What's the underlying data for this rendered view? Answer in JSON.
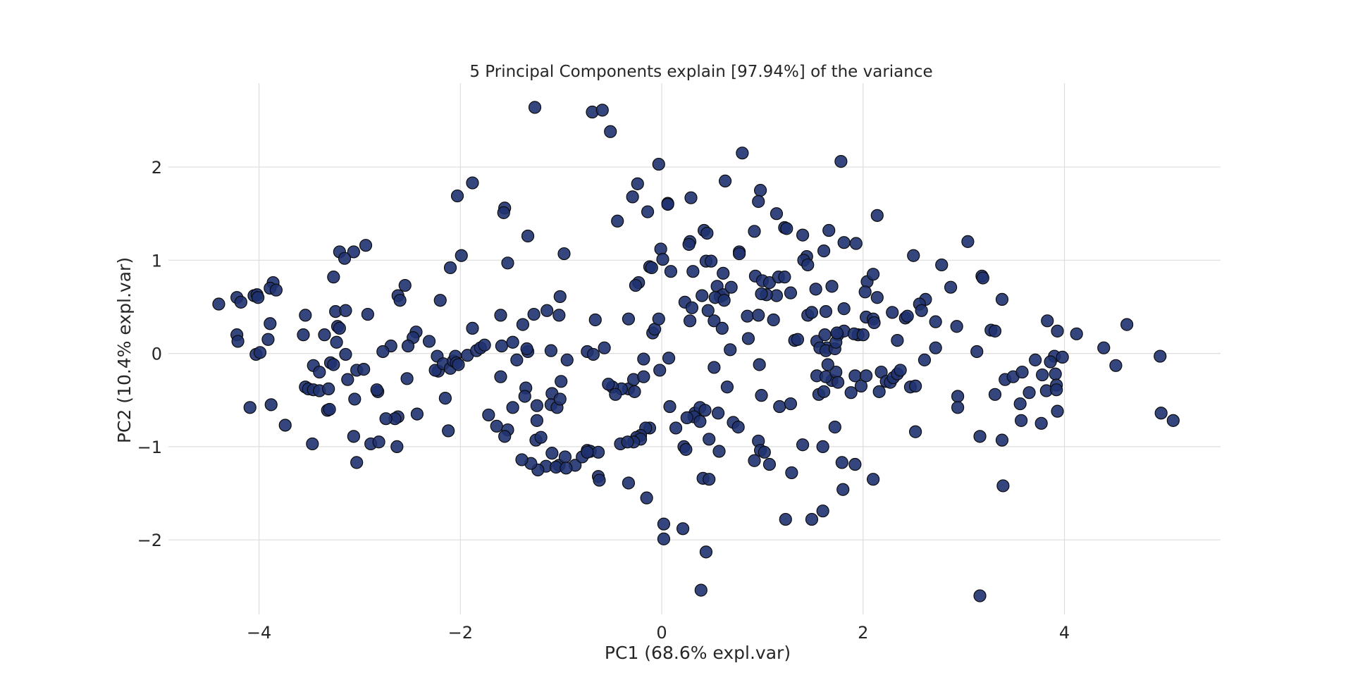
{
  "chart_data": {
    "type": "scatter",
    "title": "5 Principal Components explain [97.94%] of the variance",
    "xlabel": "PC1 (68.6% expl.var)",
    "ylabel": "PC2 (10.4% expl.var)",
    "xlim": [
      -4.9,
      5.55
    ],
    "ylim": [
      -2.8,
      2.9
    ],
    "xticks": [
      -4,
      -2,
      0,
      2,
      4
    ],
    "xtick_labels": [
      "−4",
      "−2",
      "0",
      "2",
      "4"
    ],
    "yticks": [
      -2,
      -1,
      0,
      1,
      2
    ],
    "ytick_labels": [
      "−2",
      "−1",
      "0",
      "1",
      "2"
    ],
    "grid": true,
    "legend": "none",
    "point_color": "#1f3270",
    "edge_color": "#0c0c0c",
    "points": [
      [
        -1.26,
        2.64
      ],
      [
        -0.69,
        2.59
      ],
      [
        -0.59,
        2.61
      ],
      [
        -0.51,
        2.38
      ],
      [
        -0.03,
        2.03
      ],
      [
        0.8,
        2.15
      ],
      [
        1.78,
        2.06
      ],
      [
        -1.88,
        1.83
      ],
      [
        -2.03,
        1.69
      ],
      [
        -1.56,
        1.56
      ],
      [
        -1.57,
        1.51
      ],
      [
        -0.24,
        1.82
      ],
      [
        -0.29,
        1.68
      ],
      [
        0.06,
        1.61
      ],
      [
        0.06,
        1.6
      ],
      [
        0.29,
        1.67
      ],
      [
        0.63,
        1.85
      ],
      [
        0.98,
        1.75
      ],
      [
        0.96,
        1.63
      ],
      [
        1.14,
        1.5
      ],
      [
        1.22,
        1.35
      ],
      [
        1.24,
        1.34
      ],
      [
        2.14,
        1.48
      ],
      [
        -0.14,
        1.52
      ],
      [
        -0.44,
        1.42
      ],
      [
        -1.33,
        1.26
      ],
      [
        -1.53,
        0.97
      ],
      [
        -0.97,
        1.07
      ],
      [
        -1.99,
        1.05
      ],
      [
        -2.1,
        0.92
      ],
      [
        -3.2,
        1.09
      ],
      [
        -3.06,
        1.09
      ],
      [
        -2.94,
        1.16
      ],
      [
        -3.15,
        1.02
      ],
      [
        0.42,
        1.32
      ],
      [
        0.45,
        1.29
      ],
      [
        0.28,
        1.2
      ],
      [
        0.27,
        1.17
      ],
      [
        0.77,
        1.09
      ],
      [
        0.77,
        1.07
      ],
      [
        0.92,
        1.31
      ],
      [
        1.4,
        1.27
      ],
      [
        1.66,
        1.32
      ],
      [
        1.61,
        1.1
      ],
      [
        1.81,
        1.19
      ],
      [
        1.93,
        1.18
      ],
      [
        1.44,
        1.04
      ],
      [
        1.41,
        1.0
      ],
      [
        1.45,
        0.95
      ],
      [
        -0.01,
        1.12
      ],
      [
        0.01,
        1.01
      ],
      [
        -0.12,
        0.93
      ],
      [
        -0.1,
        0.92
      ],
      [
        0.09,
        0.88
      ],
      [
        -0.23,
        0.76
      ],
      [
        -0.26,
        0.73
      ],
      [
        0.31,
        0.88
      ],
      [
        0.44,
        0.99
      ],
      [
        0.49,
        0.99
      ],
      [
        0.55,
        0.72
      ],
      [
        0.58,
        0.61
      ],
      [
        0.61,
        0.63
      ],
      [
        0.69,
        0.71
      ],
      [
        0.61,
        0.86
      ],
      [
        0.93,
        0.83
      ],
      [
        1.0,
        0.78
      ],
      [
        1.07,
        0.76
      ],
      [
        1.16,
        0.82
      ],
      [
        1.22,
        0.82
      ],
      [
        1.28,
        0.65
      ],
      [
        1.14,
        0.62
      ],
      [
        1.04,
        0.63
      ],
      [
        1.53,
        0.69
      ],
      [
        1.69,
        0.72
      ],
      [
        2.04,
        0.77
      ],
      [
        2.1,
        0.85
      ],
      [
        2.14,
        0.6
      ],
      [
        2.02,
        0.66
      ],
      [
        2.5,
        1.05
      ],
      [
        2.78,
        0.95
      ],
      [
        3.04,
        1.2
      ],
      [
        2.87,
        0.71
      ],
      [
        2.62,
        0.58
      ],
      [
        2.56,
        0.53
      ],
      [
        2.58,
        0.46
      ],
      [
        3.18,
        0.83
      ],
      [
        3.19,
        0.81
      ],
      [
        3.38,
        0.58
      ],
      [
        -4.4,
        0.53
      ],
      [
        -4.22,
        0.6
      ],
      [
        -4.18,
        0.55
      ],
      [
        -4.05,
        0.62
      ],
      [
        -4.02,
        0.63
      ],
      [
        -4.01,
        0.6
      ],
      [
        -3.86,
        0.76
      ],
      [
        -3.89,
        0.7
      ],
      [
        -3.83,
        0.68
      ],
      [
        -3.26,
        0.82
      ],
      [
        -3.24,
        0.45
      ],
      [
        -3.14,
        0.46
      ],
      [
        -2.92,
        0.42
      ],
      [
        -2.62,
        0.62
      ],
      [
        -2.6,
        0.57
      ],
      [
        -2.55,
        0.73
      ],
      [
        -2.2,
        0.57
      ],
      [
        -3.89,
        0.32
      ],
      [
        -3.22,
        0.29
      ],
      [
        -3.2,
        0.27
      ],
      [
        -3.91,
        0.15
      ],
      [
        -3.54,
        0.41
      ],
      [
        -3.56,
        0.2
      ],
      [
        -3.35,
        0.2
      ],
      [
        -3.23,
        0.12
      ],
      [
        -4.22,
        0.2
      ],
      [
        -4.21,
        0.13
      ],
      [
        -4.03,
        -0.01
      ],
      [
        -3.99,
        0.01
      ],
      [
        -3.14,
        -0.01
      ],
      [
        -2.69,
        0.08
      ],
      [
        -2.77,
        0.02
      ],
      [
        -2.44,
        0.23
      ],
      [
        -2.47,
        0.17
      ],
      [
        -2.52,
        0.08
      ],
      [
        -2.31,
        0.13
      ],
      [
        -2.23,
        -0.03
      ],
      [
        -2.22,
        -0.19
      ],
      [
        -2.25,
        -0.18
      ],
      [
        -2.17,
        -0.11
      ],
      [
        -2.1,
        -0.16
      ],
      [
        -2.07,
        -0.08
      ],
      [
        -2.05,
        -0.03
      ],
      [
        -2.04,
        -0.1
      ],
      [
        -2.02,
        -0.12
      ],
      [
        -1.93,
        -0.02
      ],
      [
        -1.88,
        0.27
      ],
      [
        -1.84,
        0.03
      ],
      [
        -1.8,
        0.06
      ],
      [
        -1.76,
        0.09
      ],
      [
        -1.59,
        0.08
      ],
      [
        -1.6,
        0.41
      ],
      [
        -1.48,
        0.12
      ],
      [
        -1.44,
        -0.07
      ],
      [
        -1.38,
        0.31
      ],
      [
        -1.33,
        0.02
      ],
      [
        -1.34,
        0.05
      ],
      [
        -1.1,
        0.03
      ],
      [
        -1.27,
        0.42
      ],
      [
        -1.14,
        0.46
      ],
      [
        -1.02,
        0.41
      ],
      [
        -1.01,
        0.61
      ],
      [
        -0.94,
        -0.07
      ],
      [
        -0.74,
        0.02
      ],
      [
        -0.66,
        0.36
      ],
      [
        -0.57,
        0.06
      ],
      [
        -0.68,
        -0.01
      ],
      [
        -0.33,
        0.37
      ],
      [
        -0.18,
        -0.06
      ],
      [
        0.07,
        -0.05
      ],
      [
        -0.09,
        0.22
      ],
      [
        -0.07,
        0.26
      ],
      [
        -0.03,
        0.37
      ],
      [
        0.23,
        0.55
      ],
      [
        0.28,
        0.35
      ],
      [
        0.3,
        0.49
      ],
      [
        0.4,
        0.62
      ],
      [
        0.46,
        0.46
      ],
      [
        0.53,
        0.6
      ],
      [
        0.52,
        0.35
      ],
      [
        0.6,
        0.27
      ],
      [
        0.62,
        0.57
      ],
      [
        0.68,
        0.04
      ],
      [
        0.85,
        0.4
      ],
      [
        0.86,
        0.16
      ],
      [
        0.96,
        0.41
      ],
      [
        0.99,
        0.64
      ],
      [
        1.11,
        0.36
      ],
      [
        1.32,
        0.14
      ],
      [
        1.35,
        0.15
      ],
      [
        1.45,
        0.41
      ],
      [
        1.49,
        0.44
      ],
      [
        1.63,
        0.45
      ],
      [
        1.54,
        0.13
      ],
      [
        1.62,
        0.2
      ],
      [
        1.75,
        0.2
      ],
      [
        1.64,
        0.06
      ],
      [
        1.57,
        0.06
      ],
      [
        1.63,
        0.03
      ],
      [
        1.72,
        0.05
      ],
      [
        1.73,
        0.12
      ],
      [
        1.81,
        0.24
      ],
      [
        1.95,
        0.2
      ],
      [
        1.91,
        0.21
      ],
      [
        2.03,
        0.39
      ],
      [
        2.1,
        0.37
      ],
      [
        2.0,
        0.2
      ],
      [
        2.11,
        0.33
      ],
      [
        2.29,
        0.44
      ],
      [
        2.42,
        0.38
      ],
      [
        2.44,
        0.4
      ],
      [
        2.72,
        0.34
      ],
      [
        2.61,
        -0.07
      ],
      [
        2.72,
        0.06
      ],
      [
        2.34,
        0.14
      ],
      [
        1.74,
        0.22
      ],
      [
        1.81,
        0.48
      ],
      [
        2.93,
        0.29
      ],
      [
        3.13,
        0.02
      ],
      [
        3.27,
        0.25
      ],
      [
        3.31,
        0.24
      ],
      [
        3.83,
        0.35
      ],
      [
        3.93,
        0.24
      ],
      [
        4.12,
        0.21
      ],
      [
        4.39,
        0.06
      ],
      [
        4.51,
        -0.13
      ],
      [
        4.62,
        0.31
      ],
      [
        4.95,
        -0.03
      ],
      [
        3.9,
        -0.03
      ],
      [
        3.98,
        -0.04
      ],
      [
        3.86,
        -0.09
      ],
      [
        3.71,
        -0.07
      ],
      [
        -3.46,
        -0.13
      ],
      [
        -3.4,
        -0.2
      ],
      [
        -3.29,
        -0.1
      ],
      [
        -3.26,
        -0.12
      ],
      [
        -3.12,
        -0.28
      ],
      [
        -3.03,
        -0.18
      ],
      [
        -2.96,
        -0.17
      ],
      [
        -3.54,
        -0.36
      ],
      [
        -3.51,
        -0.38
      ],
      [
        -3.46,
        -0.39
      ],
      [
        -3.4,
        -0.4
      ],
      [
        -3.31,
        -0.38
      ],
      [
        -2.82,
        -0.41
      ],
      [
        -2.83,
        -0.39
      ],
      [
        -2.43,
        -0.65
      ],
      [
        -2.53,
        -0.27
      ],
      [
        -3.05,
        -0.49
      ],
      [
        -3.32,
        -0.61
      ],
      [
        -3.3,
        -0.6
      ],
      [
        -4.09,
        -0.58
      ],
      [
        -3.88,
        -0.55
      ],
      [
        -2.62,
        -0.68
      ],
      [
        -2.65,
        -0.7
      ],
      [
        -2.74,
        -0.7
      ],
      [
        -3.74,
        -0.77
      ],
      [
        -3.47,
        -0.97
      ],
      [
        -3.06,
        -0.89
      ],
      [
        -2.89,
        -0.97
      ],
      [
        -2.81,
        -0.95
      ],
      [
        -2.63,
        -1.0
      ],
      [
        -3.03,
        -1.17
      ],
      [
        -2.15,
        -0.48
      ],
      [
        -2.12,
        -0.83
      ],
      [
        -1.72,
        -0.66
      ],
      [
        -1.64,
        -0.78
      ],
      [
        -1.6,
        -0.25
      ],
      [
        -1.53,
        -0.82
      ],
      [
        -1.56,
        -0.89
      ],
      [
        -1.48,
        -0.58
      ],
      [
        -1.35,
        -0.37
      ],
      [
        -1.36,
        -0.46
      ],
      [
        -1.24,
        -0.56
      ],
      [
        -1.24,
        -0.72
      ],
      [
        -1.25,
        -0.93
      ],
      [
        -1.2,
        -0.9
      ],
      [
        -1.09,
        -0.43
      ],
      [
        -1.1,
        -0.55
      ],
      [
        -1.04,
        -0.58
      ],
      [
        -1.01,
        -0.49
      ],
      [
        -1.0,
        -0.3
      ],
      [
        -1.09,
        -1.07
      ],
      [
        -1.02,
        -1.2
      ],
      [
        -0.96,
        -1.11
      ],
      [
        -0.86,
        -1.2
      ],
      [
        -0.79,
        -1.11
      ],
      [
        -0.74,
        -1.04
      ],
      [
        -0.71,
        -1.05
      ],
      [
        -0.63,
        -1.06
      ],
      [
        -1.15,
        -1.21
      ],
      [
        -1.23,
        -1.25
      ],
      [
        -1.3,
        -1.18
      ],
      [
        -1.39,
        -1.14
      ],
      [
        -1.05,
        -1.22
      ],
      [
        -0.95,
        -1.23
      ],
      [
        -0.74,
        -1.06
      ],
      [
        -0.63,
        -1.32
      ],
      [
        -0.62,
        -1.36
      ],
      [
        -0.41,
        -0.97
      ],
      [
        -0.33,
        -0.38
      ],
      [
        -0.4,
        -0.38
      ],
      [
        -0.49,
        -0.36
      ],
      [
        -0.53,
        -0.33
      ],
      [
        -0.46,
        -0.44
      ],
      [
        -0.28,
        -0.28
      ],
      [
        -0.27,
        -0.41
      ],
      [
        -0.18,
        -0.25
      ],
      [
        -0.02,
        -0.18
      ],
      [
        -0.12,
        -0.8
      ],
      [
        -0.16,
        -0.8
      ],
      [
        -0.21,
        -0.88
      ],
      [
        -0.25,
        -0.9
      ],
      [
        -0.21,
        -0.92
      ],
      [
        -0.28,
        -0.95
      ],
      [
        -0.34,
        -0.95
      ],
      [
        -0.15,
        -1.55
      ],
      [
        -0.33,
        -1.39
      ],
      [
        0.02,
        -1.83
      ],
      [
        0.21,
        -1.88
      ],
      [
        0.02,
        -1.99
      ],
      [
        0.08,
        -0.57
      ],
      [
        0.14,
        -0.8
      ],
      [
        0.22,
        -1.0
      ],
      [
        0.24,
        -1.03
      ],
      [
        0.33,
        -0.64
      ],
      [
        0.38,
        -0.58
      ],
      [
        0.43,
        -0.61
      ],
      [
        0.32,
        -0.68
      ],
      [
        0.25,
        -0.69
      ],
      [
        0.38,
        -0.73
      ],
      [
        0.47,
        -0.92
      ],
      [
        0.56,
        -0.64
      ],
      [
        0.57,
        -1.05
      ],
      [
        0.65,
        -0.36
      ],
      [
        0.52,
        -0.15
      ],
      [
        0.71,
        -0.74
      ],
      [
        0.76,
        -0.79
      ],
      [
        0.97,
        -0.12
      ],
      [
        0.99,
        -0.45
      ],
      [
        0.96,
        -0.94
      ],
      [
        0.98,
        -1.04
      ],
      [
        1.02,
        -1.06
      ],
      [
        0.92,
        -1.15
      ],
      [
        1.07,
        -1.19
      ],
      [
        1.17,
        -0.57
      ],
      [
        1.28,
        -0.54
      ],
      [
        1.29,
        -1.28
      ],
      [
        1.23,
        -1.78
      ],
      [
        0.41,
        -1.34
      ],
      [
        0.47,
        -1.35
      ],
      [
        0.44,
        -2.13
      ],
      [
        0.39,
        -2.54
      ],
      [
        1.4,
        -0.98
      ],
      [
        1.54,
        -0.24
      ],
      [
        1.56,
        -0.44
      ],
      [
        1.61,
        -0.41
      ],
      [
        1.6,
        -1.0
      ],
      [
        1.69,
        -0.29
      ],
      [
        1.72,
        -0.79
      ],
      [
        1.63,
        -0.25
      ],
      [
        1.73,
        -0.2
      ],
      [
        1.65,
        -0.12
      ],
      [
        1.75,
        -0.31
      ],
      [
        1.88,
        -0.42
      ],
      [
        1.92,
        -0.24
      ],
      [
        1.98,
        -0.35
      ],
      [
        2.03,
        -0.24
      ],
      [
        1.79,
        -1.17
      ],
      [
        1.92,
        -1.19
      ],
      [
        1.8,
        -1.46
      ],
      [
        1.6,
        -1.69
      ],
      [
        1.49,
        -1.78
      ],
      [
        2.1,
        -1.35
      ],
      [
        2.18,
        -0.2
      ],
      [
        2.16,
        -0.41
      ],
      [
        2.23,
        -0.3
      ],
      [
        2.27,
        -0.31
      ],
      [
        2.3,
        -0.26
      ],
      [
        2.34,
        -0.22
      ],
      [
        2.37,
        -0.18
      ],
      [
        2.47,
        -0.36
      ],
      [
        2.52,
        -0.35
      ],
      [
        2.52,
        -0.84
      ],
      [
        2.94,
        -0.46
      ],
      [
        2.94,
        -0.58
      ],
      [
        3.16,
        -0.89
      ],
      [
        3.31,
        -0.44
      ],
      [
        3.38,
        -0.93
      ],
      [
        3.39,
        -1.42
      ],
      [
        3.41,
        -0.28
      ],
      [
        3.49,
        -0.25
      ],
      [
        3.58,
        -0.2
      ],
      [
        3.56,
        -0.54
      ],
      [
        3.57,
        -0.72
      ],
      [
        3.65,
        -0.42
      ],
      [
        3.78,
        -0.23
      ],
      [
        3.77,
        -0.75
      ],
      [
        3.82,
        -0.4
      ],
      [
        3.91,
        -0.22
      ],
      [
        3.92,
        -0.34
      ],
      [
        3.92,
        -0.39
      ],
      [
        3.93,
        -0.62
      ],
      [
        4.96,
        -0.64
      ],
      [
        5.08,
        -0.72
      ],
      [
        3.16,
        -2.6
      ]
    ]
  }
}
